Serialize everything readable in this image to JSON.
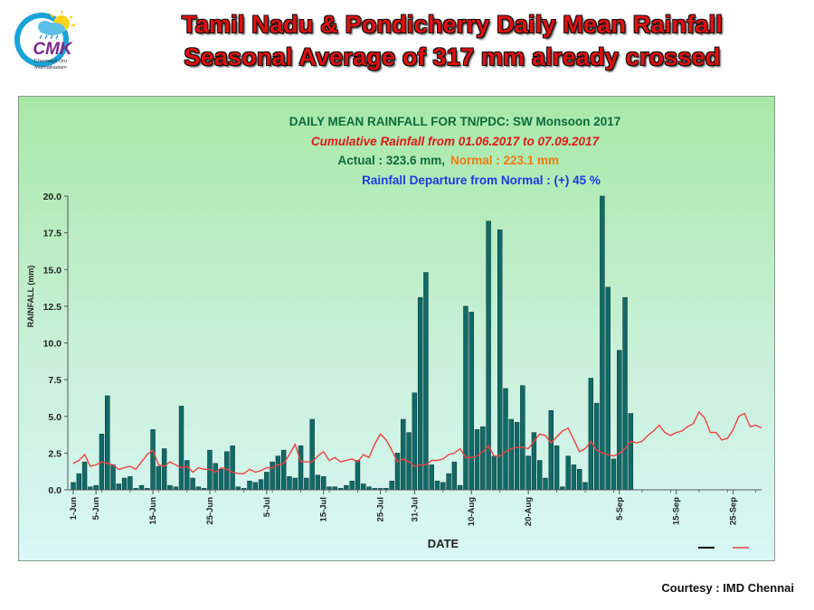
{
  "header": {
    "line1": "Tamil Nadu & Pondicherry Daily Mean Rainfall",
    "line2": "Seasonal Average of 317 mm already crossed"
  },
  "logo": {
    "icon": "cloud-sun-rain-logo",
    "name": "CMK",
    "tagline1": "Chennaiyil Oru",
    "tagline2": "Mazhaikaalam"
  },
  "courtesy": "Courtesy : IMD Chennai",
  "colors": {
    "bar": "#0f6a68",
    "bar_stroke": "#08302f",
    "normal_line": "#f04040",
    "actual_legend": "#000000",
    "title_green": "#0d6b3a",
    "subtitle_red": "#e01818",
    "normal_orange": "#f07a10",
    "departure_blue": "#1a3ce0"
  },
  "chart_data": {
    "type": "bar",
    "title": "DAILY MEAN RAINFALL FOR TN/PDC: SW Monsoon  2017",
    "subtitle": "Cumulative Rainfall  from 01.06.2017 to  07.09.2017",
    "actual_text": "Actual : 323.6 mm,",
    "normal_text": "Normal : 223.1 mm",
    "departure_text": "Rainfall Departure from Normal : (+) 45 %",
    "xlabel": "DATE",
    "ylabel": "RAINFALL (mm)",
    "ylim": [
      0,
      20
    ],
    "yticks": [
      "0.0",
      "2.5",
      "5.0",
      "7.5",
      "10.0",
      "12.5",
      "15.0",
      "17.5",
      "20.0"
    ],
    "xticks": [
      {
        "label": "1-Jun",
        "day": 1
      },
      {
        "label": "5-Jun",
        "day": 5
      },
      {
        "label": "15-Jun",
        "day": 15
      },
      {
        "label": "25-Jun",
        "day": 25
      },
      {
        "label": "5-Jul",
        "day": 35
      },
      {
        "label": "15-Jul",
        "day": 45
      },
      {
        "label": "25-Jul",
        "day": 55
      },
      {
        "label": "31-Jul",
        "day": 61
      },
      {
        "label": "10-Aug",
        "day": 71
      },
      {
        "label": "20-Aug",
        "day": 81
      },
      {
        "label": "5-Sep",
        "day": 97
      },
      {
        "label": "15-Sep",
        "day": 107
      },
      {
        "label": "25-Sep",
        "day": 117
      }
    ],
    "x_range": [
      1,
      122
    ],
    "grid": false,
    "legend_position": "bottom-right",
    "series": [
      {
        "type": "bar",
        "values": [
          0.5,
          1.1,
          1.9,
          0.2,
          0.3,
          3.8,
          6.4,
          1.7,
          0.4,
          0.8,
          0.9,
          0.1,
          0.3,
          0.1,
          4.1,
          1.6,
          2.8,
          0.3,
          0.2,
          5.7,
          2.0,
          0.8,
          0.2,
          0.1,
          2.7,
          1.8,
          1.4,
          2.6,
          3.0,
          0.2,
          0.1,
          0.6,
          0.5,
          0.7,
          1.2,
          1.9,
          2.3,
          2.7,
          0.9,
          0.8,
          3.0,
          0.8,
          4.8,
          1.0,
          0.9,
          0.2,
          0.2,
          0.1,
          0.3,
          0.6,
          2.0,
          0.4,
          0.2,
          0.1,
          0.1,
          0.1,
          0.6,
          2.5,
          4.8,
          3.9,
          6.6,
          13.1,
          14.8,
          1.7,
          0.6,
          0.5,
          1.1,
          1.9,
          0.3,
          12.5,
          12.1,
          4.1,
          4.3,
          18.3,
          2.3,
          17.7,
          6.9,
          4.8,
          4.6,
          7.1,
          2.3,
          3.9,
          2.0,
          0.8,
          5.4,
          3.0,
          0.2,
          2.3,
          1.7,
          1.4,
          0.5,
          7.6,
          5.9,
          20.0,
          13.8,
          2.1,
          9.5,
          13.1,
          5.2
        ]
      },
      {
        "type": "line",
        "values": [
          1.8,
          2.0,
          2.4,
          1.6,
          1.7,
          1.9,
          1.8,
          1.7,
          1.4,
          1.5,
          1.6,
          1.4,
          1.9,
          2.4,
          2.7,
          1.7,
          1.6,
          1.9,
          1.7,
          1.5,
          1.6,
          1.2,
          1.5,
          1.4,
          1.4,
          1.2,
          1.5,
          1.4,
          1.2,
          1.1,
          1.1,
          1.4,
          1.2,
          1.3,
          1.5,
          1.5,
          1.7,
          1.8,
          2.4,
          3.1,
          1.9,
          1.9,
          1.9,
          2.3,
          2.6,
          2.0,
          2.2,
          1.9,
          2.0,
          2.1,
          1.9,
          2.4,
          2.2,
          3.1,
          3.8,
          3.4,
          2.7,
          1.9,
          2.1,
          1.9,
          1.6,
          1.7,
          1.7,
          2.0,
          2.0,
          2.1,
          2.4,
          2.5,
          2.8,
          2.2,
          2.2,
          2.3,
          2.6,
          3.0,
          2.3,
          2.3,
          2.6,
          2.8,
          2.9,
          2.9,
          2.8,
          3.3,
          3.8,
          3.7,
          3.2,
          3.6,
          4.0,
          4.2,
          3.4,
          2.6,
          2.8,
          3.3,
          2.7,
          2.5,
          2.4,
          2.3,
          2.5,
          2.8,
          3.3,
          3.2,
          3.3,
          3.7,
          4.0,
          4.4,
          3.9,
          3.7,
          3.9,
          4.0,
          4.3,
          4.5,
          5.3,
          4.9,
          3.9,
          3.9,
          3.4,
          3.5,
          4.1,
          5.0,
          5.2,
          4.3,
          4.4,
          4.2
        ]
      }
    ]
  }
}
